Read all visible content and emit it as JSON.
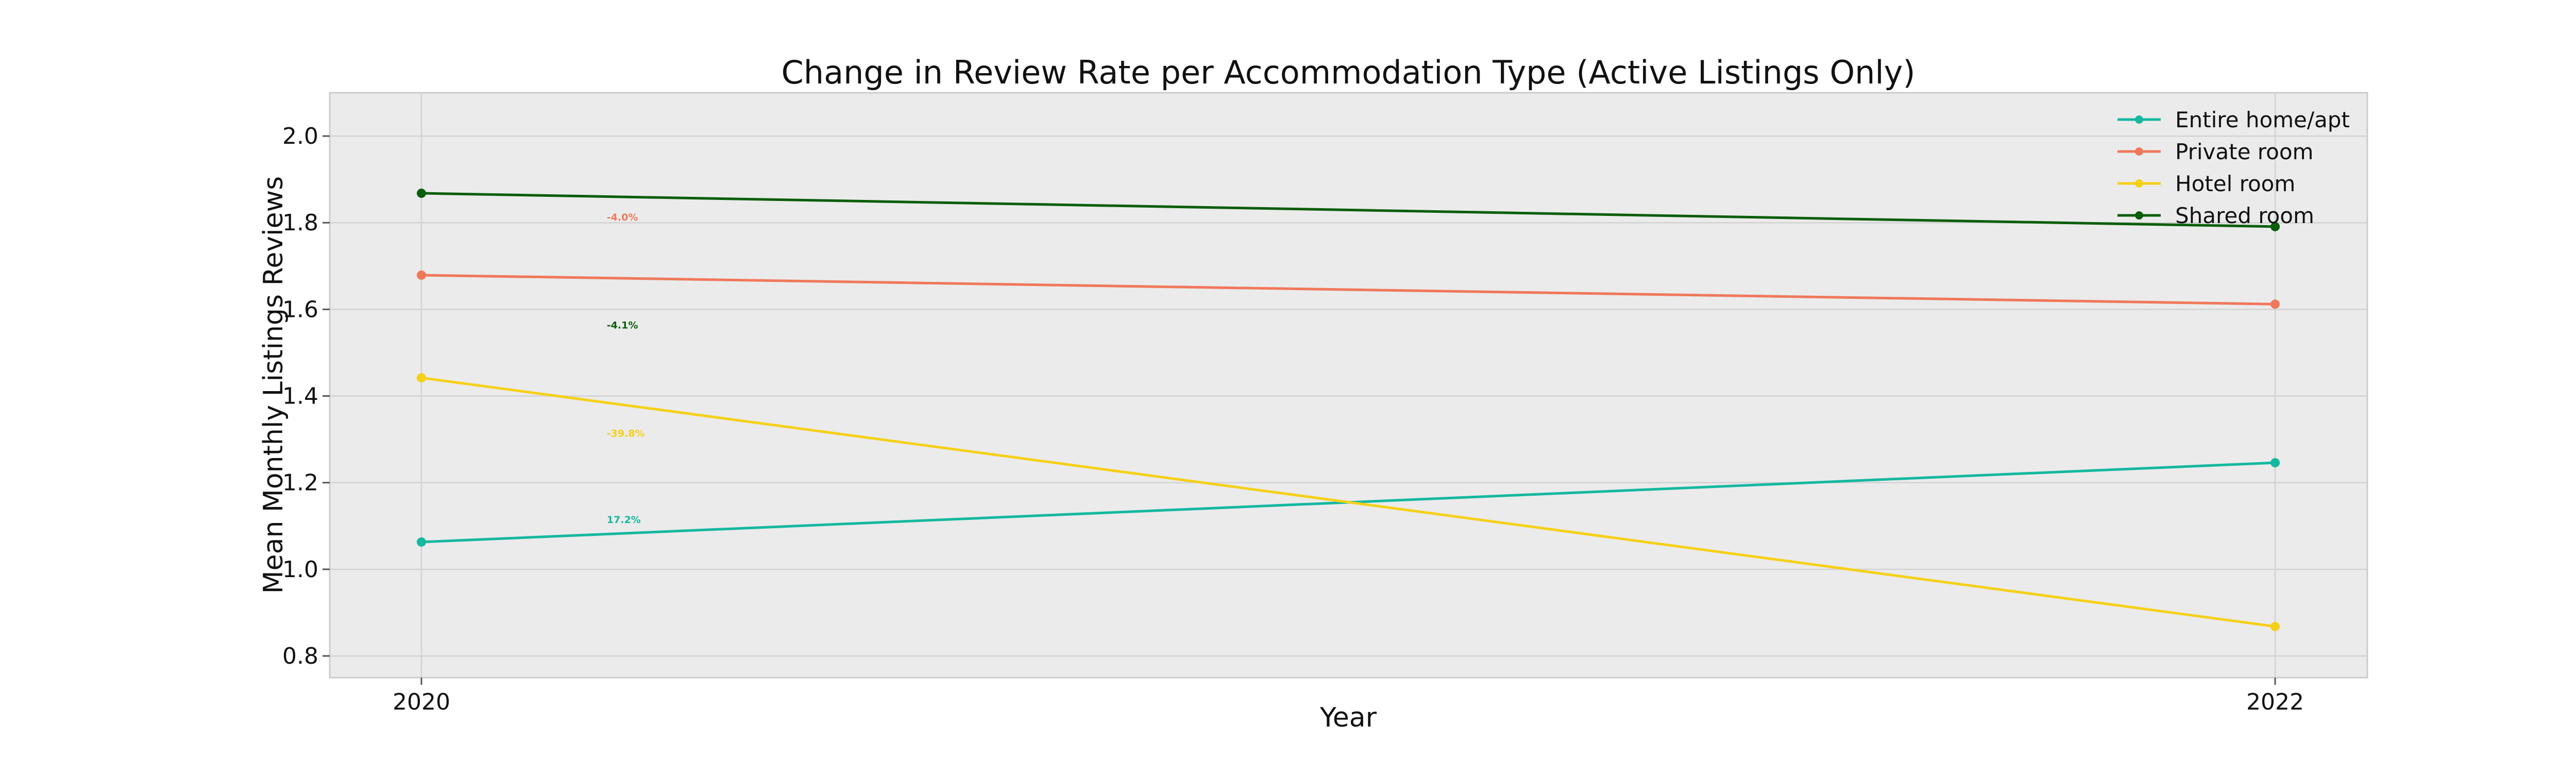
{
  "chart_data": {
    "type": "line",
    "title": "Change in Review Rate per Accommodation Type (Active Listings Only)",
    "xlabel": "Year",
    "ylabel": "Mean Monthly Listings Reviews",
    "x": [
      2020,
      2022
    ],
    "xticks": [
      "2020",
      "2022"
    ],
    "ylim": [
      0.75,
      2.1
    ],
    "yticks": [
      "0.8",
      "1.0",
      "1.2",
      "1.4",
      "1.6",
      "1.8",
      "2.0"
    ],
    "grid": true,
    "legend_position": "top-right",
    "background_color": "#ebebeb",
    "series": [
      {
        "name": "Entire home/apt",
        "color": "#14b8a0",
        "values": [
          1.063,
          1.246
        ]
      },
      {
        "name": "Private room",
        "color": "#f0785a",
        "values": [
          1.679,
          1.612
        ]
      },
      {
        "name": "Hotel room",
        "color": "#f5d018",
        "values": [
          1.442,
          0.868
        ]
      },
      {
        "name": "Shared room",
        "color": "#0b5e0b",
        "values": [
          1.868,
          1.791
        ]
      }
    ],
    "annotations": [
      {
        "text": "-4.0%",
        "color": "#f0785a",
        "x": 2020.2,
        "y": 1.805
      },
      {
        "text": "-4.1%",
        "color": "#0b5e0b",
        "x": 2020.2,
        "y": 1.556
      },
      {
        "text": "-39.8%",
        "color": "#f5d018",
        "x": 2020.2,
        "y": 1.306
      },
      {
        "text": "17.2%",
        "color": "#14b8a0",
        "x": 2020.2,
        "y": 1.107
      }
    ]
  }
}
